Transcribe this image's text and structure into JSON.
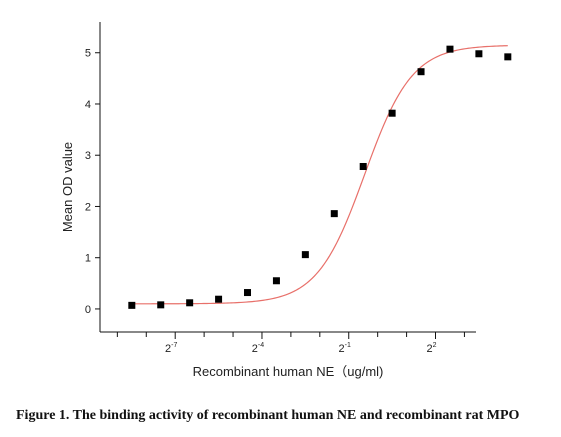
{
  "chart_data": {
    "type": "scatter",
    "xlabel": "Recombinant human NE（ug/ml)",
    "ylabel": "Mean OD value",
    "x_scale": "log2",
    "xlim": [
      -9.6,
      3.4
    ],
    "ylim": [
      -0.45,
      5.6
    ],
    "yticks": [
      0,
      1,
      2,
      3,
      4,
      5
    ],
    "x_major_ticks": [
      {
        "base": "2",
        "exp": "-7",
        "value": -7
      },
      {
        "base": "2",
        "exp": "-4",
        "value": -4
      },
      {
        "base": "2",
        "exp": "-1",
        "value": -1
      },
      {
        "base": "2",
        "exp": "2",
        "value": 2
      }
    ],
    "x_minor_ticks": [
      -9,
      -8,
      -6,
      -5,
      -3,
      -2,
      0,
      1,
      3
    ],
    "series": [
      {
        "marker": "square",
        "color": "#000000",
        "x": [
          -8.5,
          -7.5,
          -6.5,
          -5.5,
          -4.5,
          -3.5,
          -2.5,
          -1.5,
          -0.5,
          0.5,
          1.5,
          2.5,
          3.5,
          4.5
        ],
        "y": [
          0.07,
          0.08,
          0.12,
          0.19,
          0.32,
          0.55,
          1.06,
          1.86,
          2.78,
          3.82,
          4.63,
          5.07,
          4.98,
          4.92
        ]
      }
    ],
    "fit_curve": {
      "model": "4PL",
      "color": "#e8706a",
      "bottom": 0.1,
      "top": 5.15,
      "x50": -0.45,
      "slope": 0.82
    },
    "grid": false,
    "legend": "none"
  },
  "caption": "Figure 1. The binding activity of recombinant human NE and recombinant rat MPO"
}
